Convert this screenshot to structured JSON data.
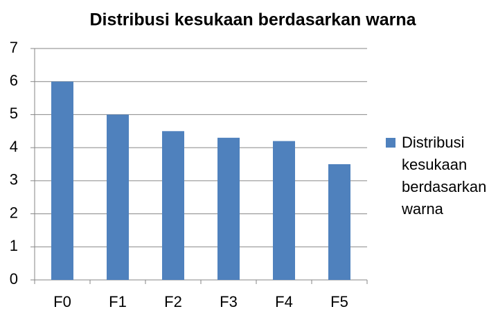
{
  "chart_data": {
    "type": "bar",
    "title": "Distribusi kesukaan berdasarkan warna",
    "categories": [
      "F0",
      "F1",
      "F2",
      "F3",
      "F4",
      "F5"
    ],
    "series": [
      {
        "name": "Distribusi kesukaan berdasarkan warna",
        "color": "#4f81bd",
        "values": [
          6,
          5,
          4.5,
          4.3,
          4.2,
          3.5
        ]
      }
    ],
    "ylim": [
      0,
      7
    ],
    "yticks": [
      0,
      1,
      2,
      3,
      4,
      5,
      6,
      7
    ],
    "grid": true,
    "legend": "right"
  }
}
